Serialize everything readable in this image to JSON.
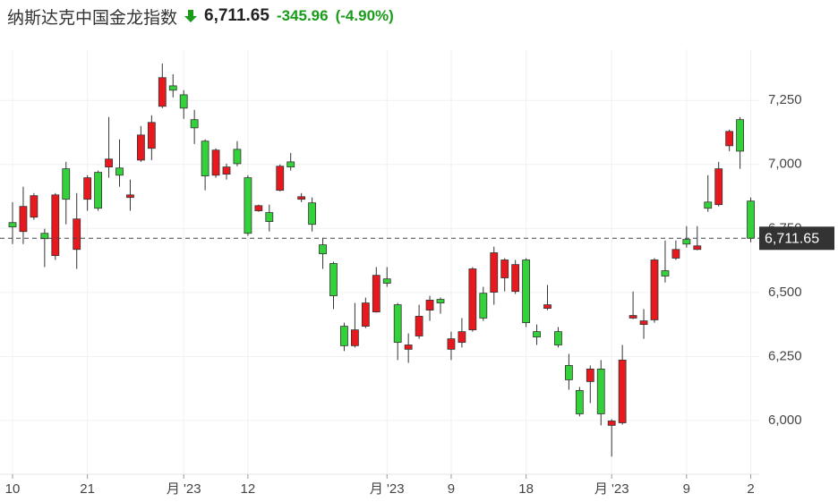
{
  "header": {
    "title": "纳斯达克中国金龙指数",
    "change": "-345.96",
    "change_pct": "(-4.90%)"
  },
  "chart_data": {
    "type": "candlestick",
    "categories": [
      "10",
      null,
      null,
      null,
      null,
      null,
      null,
      "21",
      null,
      null,
      null,
      null,
      null,
      null,
      null,
      null,
      "月 '23",
      null,
      null,
      null,
      null,
      null,
      "12",
      null,
      null,
      null,
      null,
      null,
      null,
      null,
      null,
      null,
      null,
      null,
      null,
      "月 '23",
      null,
      null,
      null,
      null,
      null,
      "9",
      null,
      null,
      null,
      null,
      null,
      null,
      "18",
      null,
      null,
      null,
      null,
      null,
      null,
      null,
      "月 '23",
      null,
      null,
      null,
      null,
      null,
      null,
      "9",
      null,
      null,
      null,
      null,
      null,
      "2"
    ],
    "open": [
      6773,
      6738,
      6794,
      6731,
      6644,
      6983,
      6668,
      6864,
      6969,
      6990,
      6986,
      6871,
      7017,
      7063,
      7227,
      7307,
      7272,
      7175,
      7091,
      6958,
      6962,
      7059,
      6948,
      6819,
      6812,
      6899,
      7010,
      6864,
      6850,
      6686,
      6613,
      6368,
      6292,
      6368,
      6424,
      6553,
      6452,
      6278,
      6330,
      6431,
      6473,
      6278,
      6305,
      6354,
      6497,
      6501,
      6557,
      6504,
      6627,
      6347,
      6438,
      6347,
      6215,
      6117,
      6152,
      6201,
      5981,
      5991,
      6400,
      6375,
      6393,
      6585,
      6634,
      6707,
      6668,
      6853,
      6843,
      7073,
      7175,
      6857
    ],
    "high": [
      6853,
      6913,
      6888,
      6749,
      6888,
      7010,
      6888,
      6958,
      6976,
      7185,
      7098,
      6941,
      7150,
      7192,
      7394,
      7352,
      7290,
      7213,
      7098,
      7063,
      7003,
      7091,
      6958,
      6843,
      6843,
      7000,
      7045,
      6888,
      6871,
      6714,
      6620,
      6382,
      6459,
      6480,
      6599,
      6599,
      6459,
      6340,
      6452,
      6487,
      6480,
      6347,
      6400,
      6599,
      6522,
      6679,
      6634,
      6627,
      6634,
      6375,
      6529,
      6365,
      6260,
      6131,
      6215,
      6236,
      6005,
      6295,
      6504,
      6435,
      6634,
      6703,
      6703,
      6759,
      6759,
      6958,
      7010,
      7136,
      7185,
      6871
    ],
    "low": [
      6689,
      6689,
      6784,
      6599,
      6627,
      6766,
      6592,
      6819,
      6819,
      6948,
      6913,
      6819,
      7010,
      7017,
      7220,
      7262,
      7178,
      7080,
      6899,
      6948,
      6941,
      6993,
      6721,
      6815,
      6738,
      6895,
      6976,
      6853,
      6738,
      6592,
      6435,
      6271,
      6285,
      6361,
      6421,
      6522,
      6236,
      6225,
      6319,
      6389,
      6417,
      6236,
      6285,
      6347,
      6389,
      6452,
      6504,
      6494,
      6365,
      6295,
      6431,
      6285,
      6120,
      6016,
      6068,
      5981,
      5859,
      5984,
      6396,
      6319,
      6382,
      6539,
      6627,
      6675,
      6665,
      6815,
      6836,
      7052,
      6983,
      6696
    ],
    "close": [
      6756,
      6836,
      6878,
      6710,
      6881,
      6864,
      6787,
      6948,
      6829,
      7021,
      6958,
      6881,
      7115,
      7164,
      7339,
      7290,
      7220,
      7143,
      6955,
      7056,
      6990,
      7003,
      6731,
      6839,
      6777,
      6993,
      6990,
      6874,
      6766,
      6651,
      6487,
      6292,
      6354,
      6459,
      6567,
      6536,
      6305,
      6295,
      6407,
      6470,
      6459,
      6319,
      6347,
      6592,
      6400,
      6655,
      6627,
      6609,
      6382,
      6326,
      6452,
      6295,
      6159,
      6026,
      6201,
      6026,
      5998,
      6236,
      6410,
      6389,
      6627,
      6564,
      6668,
      6689,
      6682,
      6829,
      6983,
      7129,
      7052,
      6711.65
    ],
    "ylim": [
      5790,
      7450
    ],
    "yticks": [
      {
        "value": 6000,
        "label": "6,000"
      },
      {
        "value": 6250,
        "label": "6,250"
      },
      {
        "value": 6500,
        "label": "6,500"
      },
      {
        "value": 6750,
        "label": "6,750"
      },
      {
        "value": 7000,
        "label": "7,000"
      },
      {
        "value": 7250,
        "label": "7,250"
      }
    ],
    "grid": true,
    "up_color": "#e8191e",
    "down_color": "#34d23a",
    "last": {
      "value": 6711.65,
      "label": "6,711.65"
    }
  }
}
